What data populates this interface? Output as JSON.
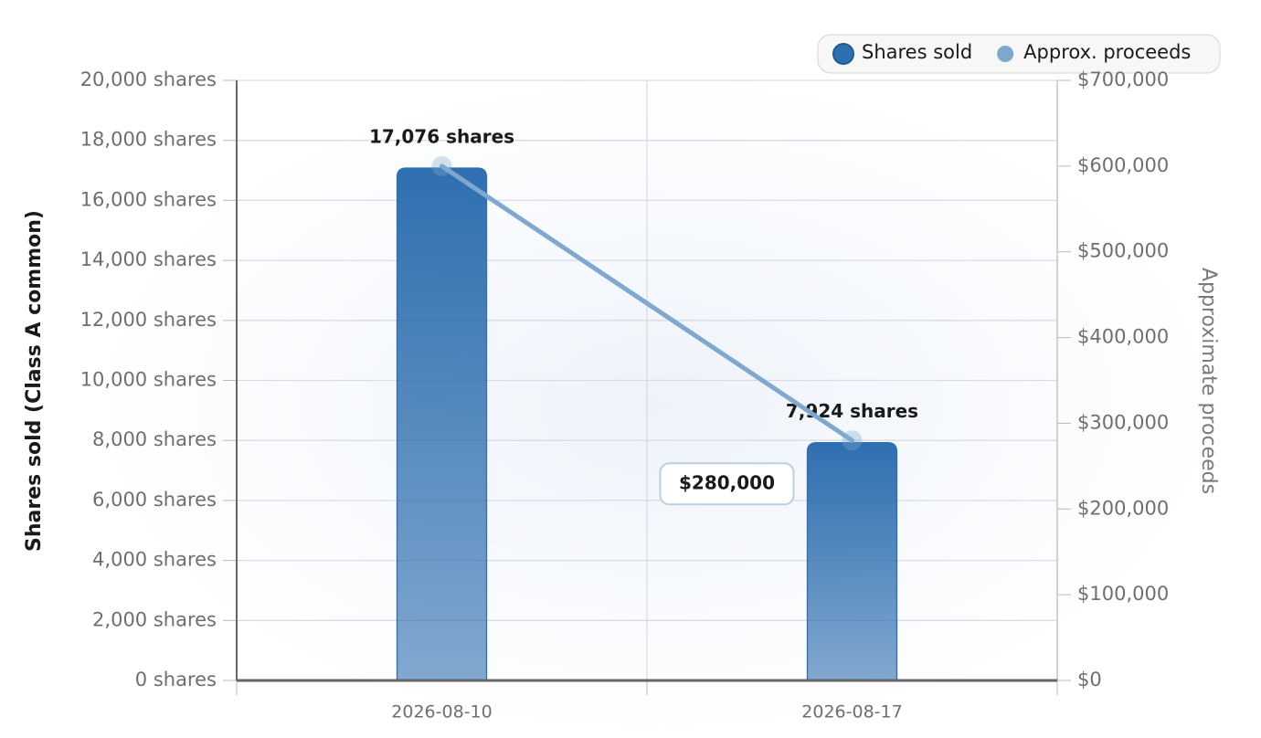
{
  "chart_data": {
    "type": "bar_line",
    "categories": [
      "2026-08-10",
      "2026-08-17"
    ],
    "series": [
      {
        "name": "Shares sold",
        "type": "bar",
        "color": "#2f6fb0",
        "values": [
          17076,
          7924
        ],
        "value_labels": [
          "17,076 shares",
          "7,924 shares"
        ]
      },
      {
        "name": "Approx. proceeds",
        "type": "line",
        "axis": "y2",
        "color": "#7fa8d0",
        "values": [
          600000,
          280000
        ],
        "value_labels": [
          null,
          "$280,000"
        ]
      }
    ],
    "y_label": "Shares sold (Class A common)",
    "y2_label": "Approximate proceeds",
    "ylim": [
      0,
      20000
    ],
    "yticks": [
      {
        "value": 0,
        "label": "0 shares"
      },
      {
        "value": 2000,
        "label": "2,000 shares"
      },
      {
        "value": 4000,
        "label": "4,000 shares"
      },
      {
        "value": 6000,
        "label": "6,000 shares"
      },
      {
        "value": 8000,
        "label": "8,000 shares"
      },
      {
        "value": 10000,
        "label": "10,000 shares"
      },
      {
        "value": 12000,
        "label": "12,000 shares"
      },
      {
        "value": 14000,
        "label": "14,000 shares"
      },
      {
        "value": 16000,
        "label": "16,000 shares"
      },
      {
        "value": 18000,
        "label": "18,000 shares"
      },
      {
        "value": 20000,
        "label": "20,000 shares"
      }
    ],
    "y2lim": [
      0,
      700000
    ],
    "y2ticks": [
      {
        "value": 0,
        "label": "$0"
      },
      {
        "value": 100000,
        "label": "$100,000"
      },
      {
        "value": 200000,
        "label": "$200,000"
      },
      {
        "value": 300000,
        "label": "$300,000"
      },
      {
        "value": 400000,
        "label": "$400,000"
      },
      {
        "value": 500000,
        "label": "$500,000"
      },
      {
        "value": 600000,
        "label": "$600,000"
      },
      {
        "value": 700000,
        "label": "$700,000"
      }
    ],
    "grid": true,
    "legend": "top-right"
  }
}
